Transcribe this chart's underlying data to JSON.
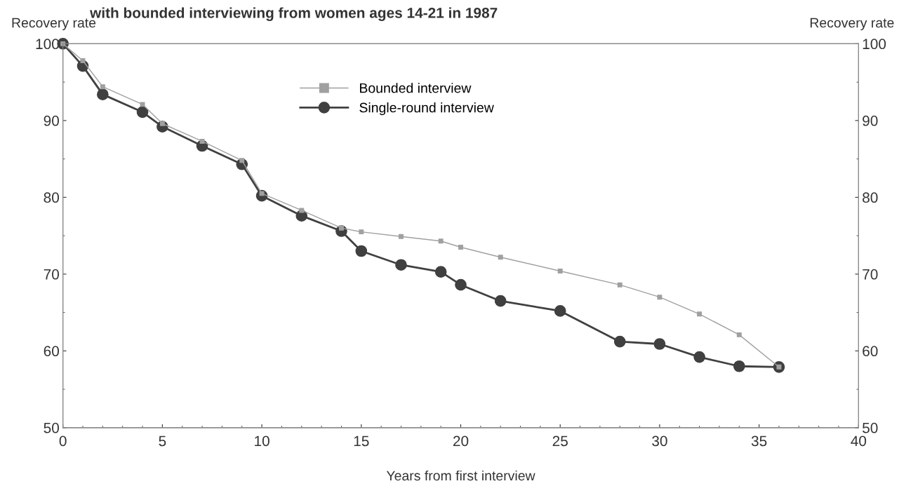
{
  "chart_data": {
    "type": "line",
    "title": "with bounded interviewing from women ages 14-21 in 1987",
    "xlabel": "Years from first interview",
    "ylabel": "Recovery rate",
    "y2label": "Recovery rate",
    "x": [
      0,
      1,
      2,
      4,
      5,
      7,
      9,
      10,
      12,
      14,
      15,
      17,
      19,
      20,
      22,
      25,
      28,
      30,
      32,
      34,
      36
    ],
    "series": [
      {
        "name": "Bounded interview",
        "color": "#a0a0a0",
        "marker": "square",
        "values": [
          100,
          97.8,
          94.4,
          92.1,
          89.6,
          87.3,
          84.8,
          80.5,
          78.3,
          76.0,
          75.5,
          74.9,
          74.3,
          73.5,
          72.2,
          70.4,
          68.6,
          67.0,
          64.8,
          62.1,
          57.9
        ]
      },
      {
        "name": "Single-round interview",
        "color": "#404040",
        "marker": "circle",
        "values": [
          100,
          97.1,
          93.4,
          91.1,
          89.2,
          86.7,
          84.3,
          80.2,
          77.6,
          75.6,
          73.0,
          71.2,
          70.3,
          68.6,
          66.5,
          65.2,
          61.2,
          60.9,
          59.2,
          58.0,
          57.9
        ]
      }
    ],
    "xlim": [
      0,
      40
    ],
    "xticks": [
      0,
      5,
      10,
      15,
      20,
      25,
      30,
      35,
      40
    ],
    "ylim": [
      50,
      100
    ],
    "yticks": [
      50,
      60,
      70,
      80,
      90,
      100
    ],
    "y2lim": [
      50,
      100
    ],
    "y2ticks": [
      50,
      60,
      70,
      80,
      90,
      100
    ],
    "grid": false,
    "legend": "top",
    "line_style": "solid"
  }
}
